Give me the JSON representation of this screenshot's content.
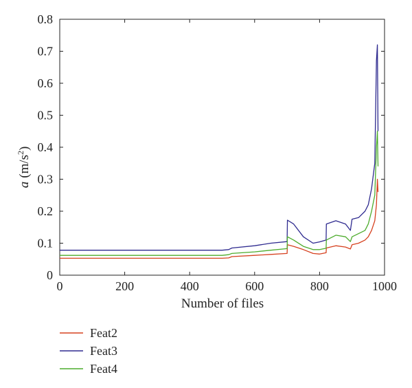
{
  "chart_data": {
    "type": "line",
    "xlabel": "Number of files",
    "ylabel": {
      "var": "a",
      "unit_base": "(m/s",
      "unit_exp": "2",
      "unit_close": ")"
    },
    "xlim": [
      0,
      1000
    ],
    "ylim": [
      0,
      0.8
    ],
    "xticks": [
      0,
      200,
      400,
      600,
      800,
      1000
    ],
    "yticks": [
      0,
      0.1,
      0.2,
      0.3,
      0.4,
      0.5,
      0.6,
      0.7,
      0.8
    ],
    "xtick_labels": [
      "0",
      "200",
      "400",
      "600",
      "800",
      "1000"
    ],
    "ytick_labels": [
      "0",
      "0.1",
      "0.2",
      "0.3",
      "0.4",
      "0.5",
      "0.6",
      "0.7",
      "0.8"
    ],
    "grid": false,
    "legend_position": "bottom-left, below plot",
    "series": [
      {
        "name": "Feat2",
        "color": "#d6401e",
        "x": [
          0,
          100,
          200,
          300,
          400,
          500,
          520,
          530,
          600,
          650,
          700,
          701,
          720,
          750,
          780,
          800,
          820,
          821,
          850,
          880,
          895,
          900,
          920,
          940,
          950,
          960,
          970,
          975,
          978,
          980
        ],
        "y": [
          0.053,
          0.053,
          0.053,
          0.053,
          0.053,
          0.053,
          0.054,
          0.058,
          0.062,
          0.065,
          0.068,
          0.095,
          0.09,
          0.08,
          0.068,
          0.066,
          0.07,
          0.085,
          0.092,
          0.088,
          0.082,
          0.095,
          0.1,
          0.11,
          0.12,
          0.14,
          0.17,
          0.22,
          0.3,
          0.26
        ]
      },
      {
        "name": "Feat3",
        "color": "#2e2a8f",
        "x": [
          0,
          100,
          200,
          300,
          400,
          500,
          520,
          530,
          600,
          650,
          700,
          701,
          720,
          750,
          780,
          800,
          820,
          821,
          850,
          880,
          895,
          900,
          920,
          940,
          950,
          960,
          970,
          975,
          978,
          980
        ],
        "y": [
          0.078,
          0.078,
          0.078,
          0.078,
          0.078,
          0.078,
          0.08,
          0.085,
          0.092,
          0.1,
          0.105,
          0.172,
          0.16,
          0.12,
          0.1,
          0.104,
          0.11,
          0.16,
          0.17,
          0.16,
          0.14,
          0.175,
          0.18,
          0.2,
          0.22,
          0.27,
          0.35,
          0.67,
          0.72,
          0.45
        ]
      },
      {
        "name": "Feat4",
        "color": "#4cab2b",
        "x": [
          0,
          100,
          200,
          300,
          400,
          500,
          520,
          530,
          600,
          650,
          700,
          701,
          720,
          750,
          780,
          800,
          820,
          821,
          850,
          880,
          895,
          900,
          920,
          940,
          950,
          960,
          970,
          975,
          978,
          980
        ],
        "y": [
          0.062,
          0.062,
          0.062,
          0.062,
          0.062,
          0.062,
          0.064,
          0.068,
          0.073,
          0.078,
          0.083,
          0.12,
          0.11,
          0.09,
          0.08,
          0.08,
          0.084,
          0.11,
          0.125,
          0.12,
          0.105,
          0.12,
          0.13,
          0.14,
          0.16,
          0.2,
          0.25,
          0.4,
          0.45,
          0.34
        ]
      }
    ]
  }
}
